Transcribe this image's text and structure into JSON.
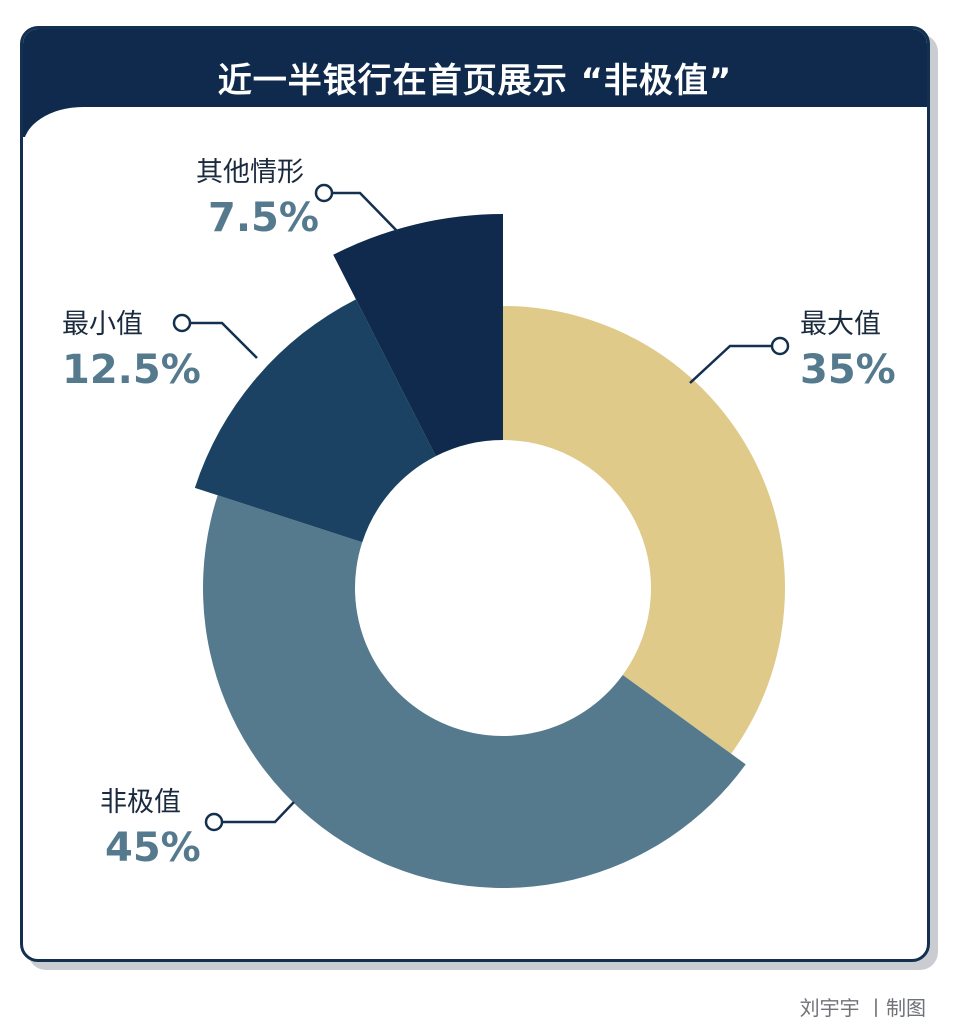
{
  "title": "近一半银行在首页展示 “非极值”",
  "credit": "刘宇宇 丨制图",
  "chart_data": {
    "type": "pie",
    "subtype": "donut",
    "title": "近一半银行在首页展示 “非极值”",
    "slices": [
      {
        "label": "最大值",
        "value": 35,
        "display": "35%",
        "color": "#dfca8a",
        "exploded": false
      },
      {
        "label": "非极值",
        "value": 45,
        "display": "45%",
        "color": "#557a8e",
        "exploded": true
      },
      {
        "label": "最小值",
        "value": 12.5,
        "display": "12.5%",
        "color": "#1b4263",
        "exploded": true
      },
      {
        "label": "其他情形",
        "value": 7.5,
        "display": "7.5%",
        "color": "#0f2a4c",
        "exploded": true
      }
    ],
    "start_angle": "12 o'clock",
    "direction": "clockwise",
    "legend": "none"
  }
}
